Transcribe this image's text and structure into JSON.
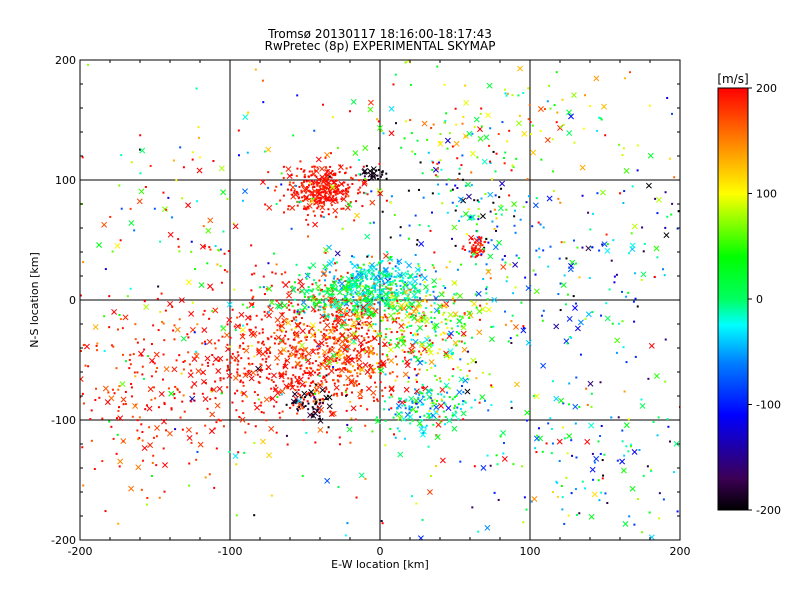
{
  "chart_data": [
    {
      "type": "scatter",
      "title": "Tromsø 20130117 18:16:00-18:17:43",
      "subtitle": "RwPretec (8p) EXPERIMENTAL SKYMAP",
      "xlabel": "E-W location [km]",
      "ylabel": "N-S location [km]",
      "xlim": [
        -200,
        200
      ],
      "ylim": [
        -200,
        200
      ],
      "xticks": [
        "-200",
        "-100",
        "0",
        "100",
        "200"
      ],
      "yticks": [
        "-200",
        "-100",
        "0",
        "100",
        "200"
      ],
      "grid": true,
      "marker_types": [
        "dot",
        "x"
      ],
      "clusters": [
        {
          "x": -38,
          "y": 92,
          "sx": 12,
          "sy": 10,
          "n": 320,
          "v": 195,
          "vs": 12
        },
        {
          "x": -55,
          "y": -45,
          "sx": 40,
          "sy": 30,
          "n": 650,
          "v": 195,
          "vs": 15
        },
        {
          "x": -25,
          "y": -35,
          "sx": 20,
          "sy": 25,
          "n": 350,
          "v": 175,
          "vs": 35
        },
        {
          "x": 0,
          "y": 15,
          "sx": 15,
          "sy": 10,
          "n": 260,
          "v": -30,
          "vs": 20
        },
        {
          "x": -20,
          "y": 5,
          "sx": 25,
          "sy": 10,
          "n": 230,
          "v": 10,
          "vs": 30
        },
        {
          "x": 25,
          "y": -20,
          "sx": 25,
          "sy": 20,
          "n": 280,
          "v": 60,
          "vs": 60
        },
        {
          "x": 30,
          "y": -90,
          "sx": 15,
          "sy": 10,
          "n": 140,
          "v": -10,
          "vs": 40
        },
        {
          "x": -45,
          "y": -88,
          "sx": 8,
          "sy": 6,
          "n": 50,
          "v": -190,
          "vs": 10
        },
        {
          "x": -5,
          "y": 105,
          "sx": 5,
          "sy": 3,
          "n": 30,
          "v": -190,
          "vs": 10
        },
        {
          "x": 60,
          "y": 75,
          "sx": 20,
          "sy": 25,
          "n": 90,
          "v": -80,
          "vs": 100
        },
        {
          "x": 65,
          "y": 45,
          "sx": 4,
          "sy": 5,
          "n": 35,
          "v": 195,
          "vs": 8
        },
        {
          "x": 140,
          "y": 20,
          "sx": 40,
          "sy": 40,
          "n": 140,
          "v": -70,
          "vs": 70
        },
        {
          "x": 140,
          "y": -130,
          "sx": 40,
          "sy": 40,
          "n": 150,
          "v": -30,
          "vs": 90
        },
        {
          "x": 80,
          "y": 140,
          "sx": 40,
          "sy": 30,
          "n": 140,
          "v": 90,
          "vs": 80
        },
        {
          "x": -130,
          "y": 20,
          "sx": 50,
          "sy": 80,
          "n": 120,
          "v": 120,
          "vs": 110
        },
        {
          "x": -150,
          "y": -80,
          "sx": 40,
          "sy": 40,
          "n": 200,
          "v": 190,
          "vs": 20
        },
        {
          "x": 0,
          "y": 0,
          "sx": 110,
          "sy": 110,
          "n": 450,
          "v": 50,
          "vs": 130
        }
      ]
    },
    {
      "type": "heatmap",
      "label": "[m/s]",
      "ticks": [
        "200",
        "100",
        "0",
        "-100",
        "-200"
      ],
      "range": [
        -200,
        200
      ],
      "colors": [
        {
          "v": -200,
          "c": "#000000"
        },
        {
          "v": -170,
          "c": "#3c0055"
        },
        {
          "v": -140,
          "c": "#1e00aa"
        },
        {
          "v": -110,
          "c": "#0000ff"
        },
        {
          "v": -60,
          "c": "#0080ff"
        },
        {
          "v": -25,
          "c": "#00ffff"
        },
        {
          "v": 0,
          "c": "#00ff60"
        },
        {
          "v": 40,
          "c": "#00ff00"
        },
        {
          "v": 100,
          "c": "#ffff00"
        },
        {
          "v": 150,
          "c": "#ff8000"
        },
        {
          "v": 200,
          "c": "#ff0000"
        }
      ]
    }
  ]
}
